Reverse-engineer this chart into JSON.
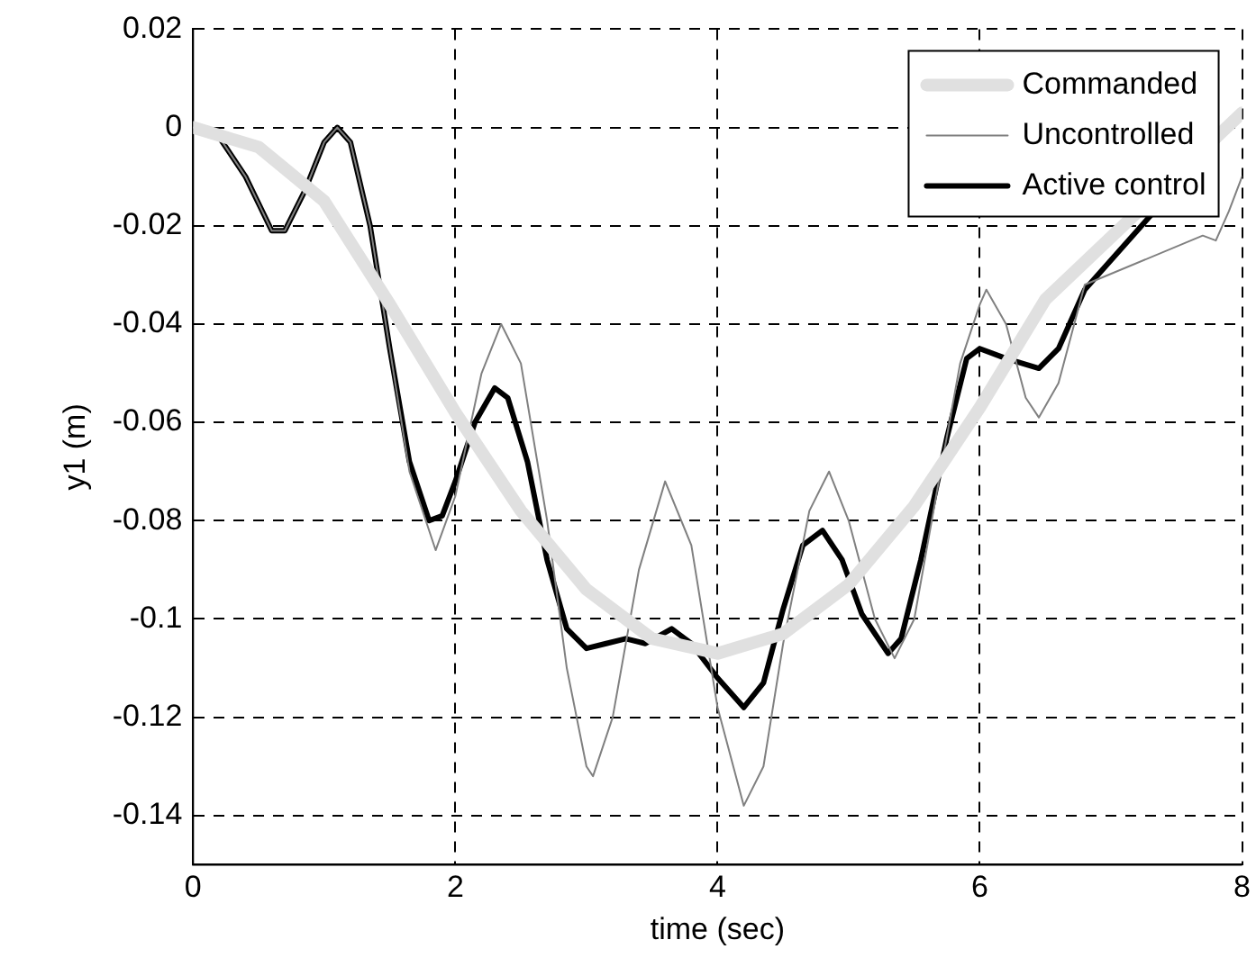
{
  "chart_data": {
    "type": "line",
    "xlabel": "time (sec)",
    "ylabel": "y1 (m)",
    "xlim": [
      0,
      8
    ],
    "ylim": [
      -0.15,
      0.02
    ],
    "xticks": [
      0,
      2,
      4,
      6,
      8
    ],
    "yticks": [
      -0.14,
      -0.12,
      {
        "value": -0.1,
        "label": "-0.1"
      },
      -0.08,
      -0.06,
      -0.04,
      -0.02,
      0,
      0.02
    ],
    "grid": true,
    "legend": "top right",
    "line_style": "solid",
    "marker": "none",
    "series": [
      {
        "name": "Commanded",
        "color": "#e0e0e0",
        "x": [
          0,
          0.5,
          1,
          1.5,
          2,
          2.5,
          3,
          3.5,
          4,
          4.5,
          5,
          5.5,
          6,
          6.5,
          7,
          7.5,
          8
        ],
        "values": [
          0,
          -0.004,
          -0.015,
          -0.036,
          -0.058,
          -0.078,
          -0.094,
          -0.104,
          -0.107,
          -0.103,
          -0.093,
          -0.077,
          -0.057,
          -0.035,
          null,
          null,
          0.003
        ]
      },
      {
        "name": "Uncontrolled",
        "color": "#808080",
        "x": [
          0,
          0.2,
          0.4,
          0.6,
          0.7,
          0.85,
          1.0,
          1.1,
          1.2,
          1.35,
          1.5,
          1.65,
          1.85,
          2.0,
          2.2,
          2.35,
          2.5,
          2.7,
          2.85,
          3.0,
          3.05,
          3.2,
          3.4,
          3.6,
          3.8,
          4.0,
          4.2,
          4.35,
          4.5,
          4.7,
          4.85,
          5.0,
          5.2,
          5.35,
          5.5,
          5.7,
          5.85,
          6.0,
          6.05,
          6.2,
          6.35,
          6.45,
          6.6,
          6.8,
          7.0,
          7.2,
          7.3,
          7.5,
          7.7,
          7.8,
          7.9,
          8.0
        ],
        "values": [
          0,
          -0.002,
          -0.01,
          -0.021,
          -0.021,
          -0.013,
          -0.003,
          0,
          -0.003,
          -0.02,
          -0.045,
          -0.07,
          -0.086,
          -0.075,
          -0.05,
          -0.04,
          -0.048,
          -0.08,
          -0.11,
          -0.13,
          -0.132,
          -0.12,
          -0.09,
          -0.072,
          -0.085,
          -0.118,
          -0.138,
          -0.13,
          -0.105,
          -0.078,
          -0.07,
          -0.08,
          -0.1,
          -0.108,
          -0.1,
          -0.07,
          -0.048,
          -0.036,
          -0.033,
          -0.04,
          -0.055,
          -0.059,
          -0.052,
          -0.032,
          null,
          null,
          null,
          null,
          -0.022,
          -0.023,
          -0.017,
          -0.01
        ]
      },
      {
        "name": "Active control",
        "color": "#000000",
        "x": [
          0,
          0.2,
          0.4,
          0.6,
          0.7,
          0.85,
          1.0,
          1.1,
          1.2,
          1.35,
          1.5,
          1.65,
          1.8,
          1.9,
          2.0,
          2.15,
          2.3,
          2.4,
          2.55,
          2.7,
          2.85,
          3.0,
          3.15,
          3.3,
          3.45,
          3.65,
          3.8,
          4.0,
          4.2,
          4.35,
          4.5,
          4.65,
          4.8,
          4.95,
          5.1,
          5.3,
          5.4,
          5.55,
          5.75,
          5.9,
          6.0,
          6.2,
          6.45,
          6.6,
          6.8,
          7.0,
          7.3,
          7.6,
          8.0
        ],
        "values": [
          0,
          -0.002,
          -0.01,
          -0.021,
          -0.021,
          -0.013,
          -0.003,
          0,
          -0.003,
          -0.02,
          -0.045,
          -0.068,
          -0.08,
          -0.079,
          -0.072,
          -0.06,
          -0.053,
          -0.055,
          -0.068,
          -0.088,
          -0.102,
          -0.106,
          -0.105,
          -0.104,
          -0.105,
          -0.102,
          -0.105,
          -0.112,
          -0.118,
          -0.113,
          -0.098,
          -0.085,
          -0.082,
          -0.088,
          -0.099,
          -0.107,
          -0.104,
          -0.088,
          -0.063,
          -0.047,
          -0.045,
          -0.047,
          -0.049,
          -0.045,
          -0.033,
          null,
          null,
          null,
          0.003
        ]
      }
    ]
  }
}
